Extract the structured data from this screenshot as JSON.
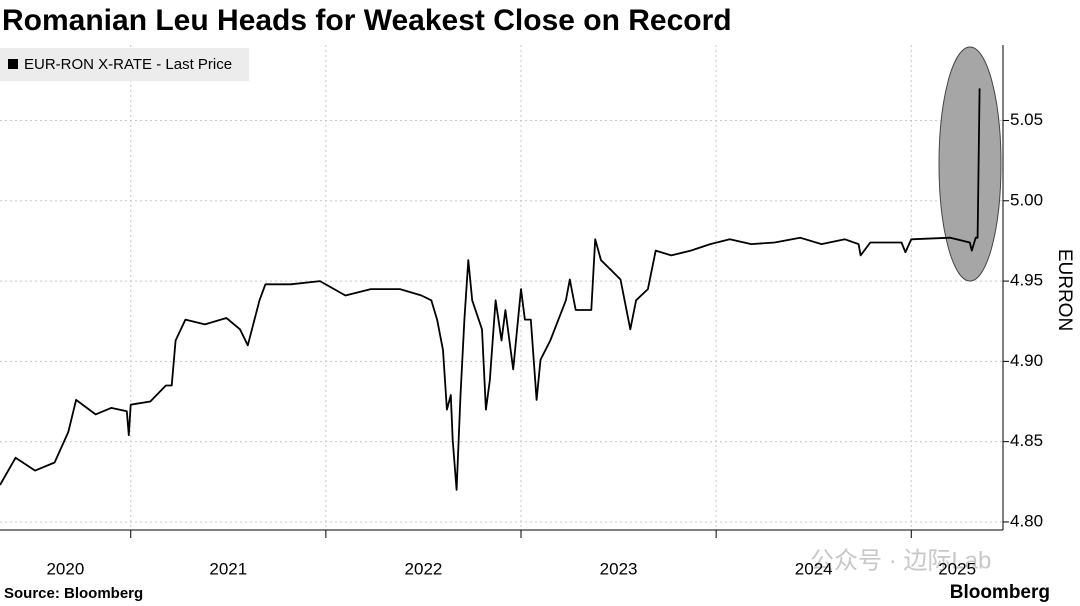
{
  "chart_data": {
    "type": "line",
    "title": "Romanian Leu Heads for Weakest Close on Record",
    "y_label": "EURRON",
    "source": "Source: Bloomberg",
    "brand": "Bloomberg",
    "watermark": "公众号 · 边际Lab",
    "xlim": [
      2020.33,
      2025.47
    ],
    "xticks": [
      2020,
      2021,
      2022,
      2023,
      2024,
      2025
    ],
    "ylim": [
      4.795,
      5.097
    ],
    "yticks": [
      {
        "value": 4.8,
        "label": "4.80"
      },
      4.85,
      {
        "value": 4.9,
        "label": "4.90"
      },
      4.95,
      {
        "value": 5.0,
        "label": "5.00"
      },
      5.05
    ],
    "grid": true,
    "x": [
      2020.33,
      2020.41,
      2020.51,
      2020.61,
      2020.68,
      2020.72,
      2020.82,
      2020.9,
      2020.98,
      2020.99,
      2021.0,
      2021.1,
      2021.18,
      2021.21,
      2021.23,
      2021.28,
      2021.38,
      2021.49,
      2021.56,
      2021.6,
      2021.66,
      2021.69,
      2021.82,
      2021.97,
      2022.1,
      2022.23,
      2022.38,
      2022.49,
      2022.54,
      2022.57,
      2022.6,
      2022.62,
      2022.64,
      2022.65,
      2022.67,
      2022.69,
      2022.71,
      2022.73,
      2022.75,
      2022.8,
      2022.82,
      2022.84,
      2022.87,
      2022.9,
      2022.92,
      2022.96,
      2023.0,
      2023.02,
      2023.05,
      2023.08,
      2023.1,
      2023.15,
      2023.23,
      2023.25,
      2023.28,
      2023.36,
      2023.38,
      2023.41,
      2023.46,
      2023.51,
      2023.56,
      2023.59,
      2023.65,
      2023.69,
      2023.77,
      2023.87,
      2023.97,
      2024.07,
      2024.18,
      2024.3,
      2024.43,
      2024.54,
      2024.66,
      2024.73,
      2024.74,
      2024.79,
      2024.95,
      2024.97,
      2025.0,
      2025.2,
      2025.3,
      2025.31,
      2025.33,
      2025.34,
      2025.35
    ],
    "series": [
      {
        "name": "EUR-RON X-RATE - Last Price",
        "color": "#000000",
        "values": [
          4.823,
          4.84,
          4.832,
          4.837,
          4.856,
          4.876,
          4.867,
          4.871,
          4.869,
          4.854,
          4.873,
          4.875,
          4.885,
          4.885,
          4.913,
          4.926,
          4.923,
          4.927,
          4.92,
          4.91,
          4.938,
          4.948,
          4.948,
          4.95,
          4.941,
          4.945,
          4.945,
          4.941,
          4.938,
          4.926,
          4.907,
          4.87,
          4.879,
          4.851,
          4.82,
          4.879,
          4.926,
          4.963,
          4.938,
          4.92,
          4.87,
          4.888,
          4.938,
          4.913,
          4.932,
          4.895,
          4.945,
          4.926,
          4.926,
          4.876,
          4.901,
          4.913,
          4.938,
          4.951,
          4.932,
          4.932,
          4.976,
          4.963,
          4.957,
          4.951,
          4.92,
          4.938,
          4.945,
          4.969,
          4.966,
          4.969,
          4.973,
          4.976,
          4.973,
          4.974,
          4.977,
          4.973,
          4.976,
          4.973,
          4.966,
          4.974,
          4.974,
          4.968,
          4.976,
          4.977,
          4.974,
          4.969,
          4.977,
          4.977,
          5.07
        ]
      }
    ]
  }
}
